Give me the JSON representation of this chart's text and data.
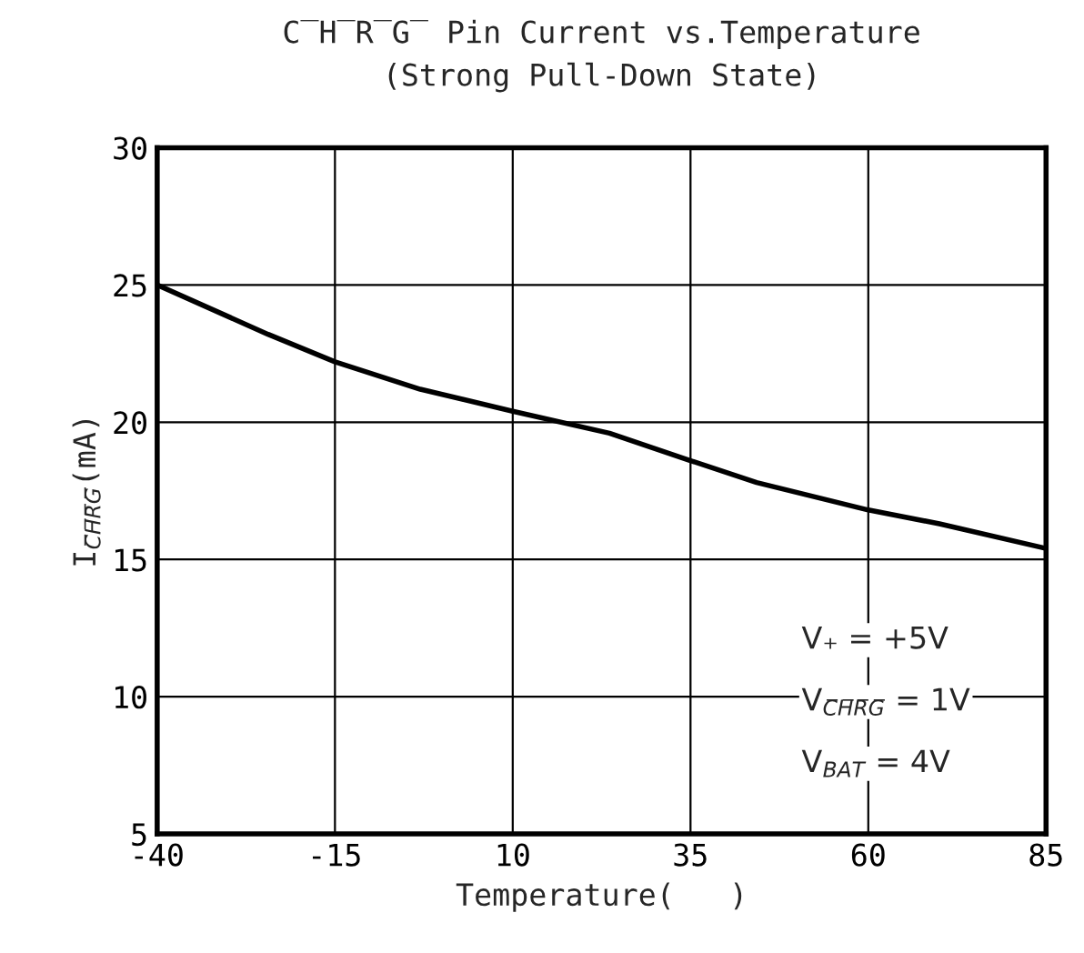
{
  "chart_data": {
    "type": "line",
    "title": "C̅H̅R̅G̅ Pin Current vs.Temperature",
    "subtitle": "(Strong Pull-Down State)",
    "xlabel": "Temperature(   )",
    "ylabel": "I$_{C̅H̅R̅G̅}$(mA)",
    "x": [
      -40,
      -24.4,
      -15,
      -3,
      10,
      23.6,
      35,
      44.3,
      60,
      70,
      85
    ],
    "series": [
      {
        "color": "#000000",
        "values": [
          25.0,
          23.2,
          22.2,
          21.2,
          20.4,
          19.6,
          18.6,
          17.8,
          16.8,
          16.3,
          15.4
        ]
      }
    ],
    "xlim": [
      -40,
      85
    ],
    "xticks": [
      -40,
      -15,
      10,
      35,
      60,
      85
    ],
    "ylim": [
      5,
      30
    ],
    "yticks": [
      5,
      10,
      15,
      20,
      25,
      30
    ],
    "grid": true,
    "legend": false,
    "marker": "none",
    "line_style": "solid",
    "annotations": [
      "V₊ = +5V",
      "V$_{C̅H̅R̅G̅}$ = 1V",
      "V$_{BAT}$ = 4V"
    ]
  }
}
